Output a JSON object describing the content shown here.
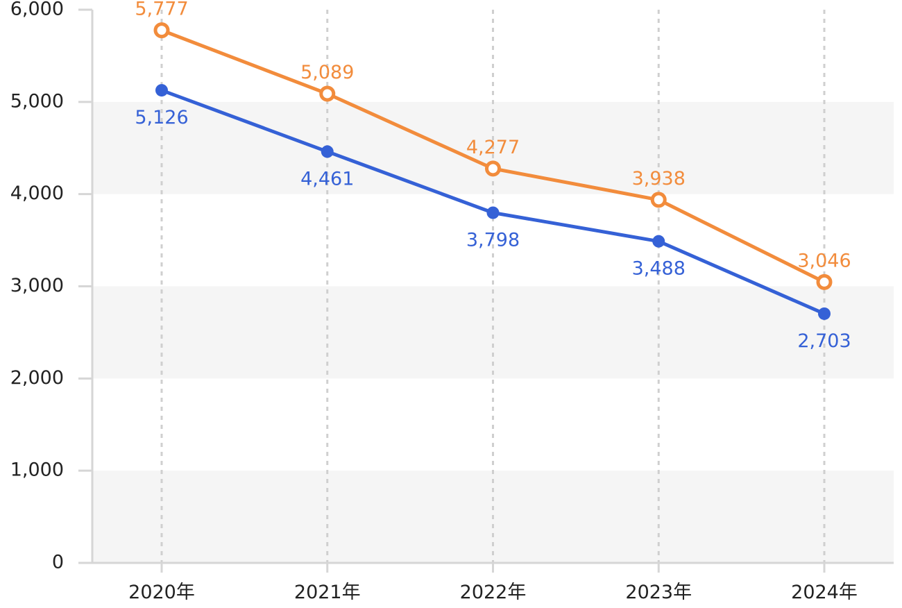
{
  "chart_data": {
    "type": "line",
    "title": "",
    "xlabel": "",
    "ylabel": "",
    "ylim": [
      0,
      6000
    ],
    "yticks": [
      0,
      1000,
      2000,
      3000,
      4000,
      5000,
      6000
    ],
    "ytick_labels": [
      "0",
      "1,000",
      "2,000",
      "3,000",
      "4,000",
      "5,000",
      "6,000"
    ],
    "categories": [
      "2020年",
      "2021年",
      "2022年",
      "2023年",
      "2024年"
    ],
    "grid": "vertical dashed lines at categories; alternating horizontal bands",
    "legend": "none",
    "series": [
      {
        "marker": "hollow-circle",
        "color": "#F28C3C",
        "label_position": "above",
        "values": [
          5777,
          5089,
          4277,
          3938,
          3046
        ],
        "labels": [
          "5,777",
          "5,089",
          "4,277",
          "3,938",
          "3,046"
        ]
      },
      {
        "marker": "filled-circle",
        "color": "#3561D6",
        "label_position": "below",
        "values": [
          5126,
          4461,
          3798,
          3488,
          2703
        ],
        "labels": [
          "5,126",
          "4,461",
          "3,798",
          "3,488",
          "2,703"
        ]
      }
    ]
  }
}
